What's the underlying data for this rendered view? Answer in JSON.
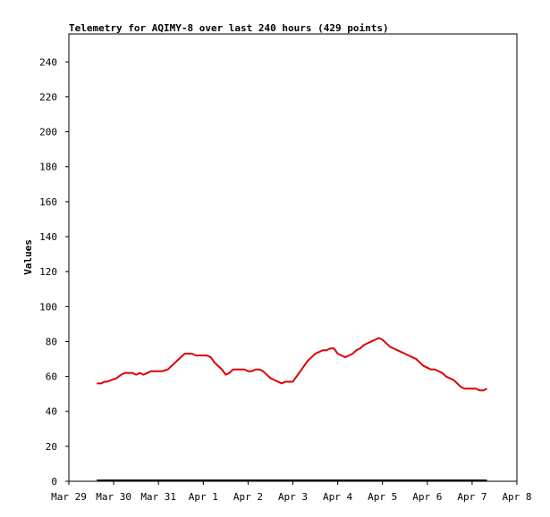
{
  "chart_data": {
    "type": "line",
    "title": "Telemetry for AQIMY-8 over last 240 hours (429 points)",
    "xlabel": "",
    "ylabel": "Values",
    "x_tick_labels": [
      "Mar 29",
      "Mar 30",
      "Mar 31",
      "Apr 1",
      "Apr 2",
      "Apr 3",
      "Apr 4",
      "Apr 5",
      "Apr 6",
      "Apr 7",
      "Apr 8"
    ],
    "y_ticks": [
      0,
      20,
      40,
      60,
      80,
      100,
      120,
      140,
      160,
      180,
      200,
      220,
      240
    ],
    "xlim": [
      0,
      240
    ],
    "ylim": [
      0,
      256
    ],
    "grid": false,
    "colors": {
      "series": "#dd0000",
      "baseline": "#000000"
    },
    "series": [
      {
        "x": [
          15,
          17.5,
          19,
          20.5,
          23,
          25.5,
          28,
          30,
          32,
          34,
          36,
          38,
          40,
          42,
          44,
          46,
          48,
          50,
          53,
          56,
          58,
          60,
          62,
          64,
          66,
          68,
          70,
          72,
          74,
          76,
          78,
          80,
          82,
          84,
          86,
          88,
          90,
          92,
          94,
          96,
          98,
          100,
          102,
          104,
          106,
          108,
          110,
          112,
          114,
          116,
          118,
          120,
          122,
          124,
          126,
          128,
          130,
          132,
          134,
          136,
          138,
          140,
          142,
          144,
          146,
          148,
          150,
          152,
          154,
          156,
          158,
          160,
          162,
          164,
          166,
          168,
          170,
          172,
          174,
          176,
          178,
          180,
          182,
          184,
          186,
          188,
          190,
          192,
          194,
          196,
          198,
          200,
          202,
          204,
          206,
          208,
          210,
          212,
          214,
          216,
          218,
          220,
          222,
          224
        ],
        "y": [
          56,
          56,
          57,
          57,
          58,
          59,
          61,
          62,
          62,
          62,
          61,
          62,
          61,
          62,
          63,
          63,
          63,
          63,
          64,
          67,
          69,
          71,
          73,
          73,
          73,
          72,
          72,
          72,
          72,
          71,
          68,
          66,
          64,
          61,
          62,
          64,
          64,
          64,
          64,
          63,
          63,
          64,
          64,
          63,
          61,
          59,
          58,
          57,
          56,
          57,
          57,
          57,
          60,
          63,
          66,
          69,
          71,
          73,
          74,
          75,
          75,
          76,
          76,
          73,
          72,
          71,
          72,
          73,
          75,
          76,
          78,
          79,
          80,
          81,
          82,
          81,
          79,
          77,
          76,
          75,
          74,
          73,
          72,
          71,
          70,
          68,
          66,
          65,
          64,
          64,
          63,
          62,
          60,
          59,
          58,
          56,
          54,
          53,
          53,
          53,
          53,
          52,
          52,
          53
        ]
      },
      {
        "x": [
          15,
          224
        ],
        "y": [
          0,
          0
        ]
      }
    ]
  }
}
